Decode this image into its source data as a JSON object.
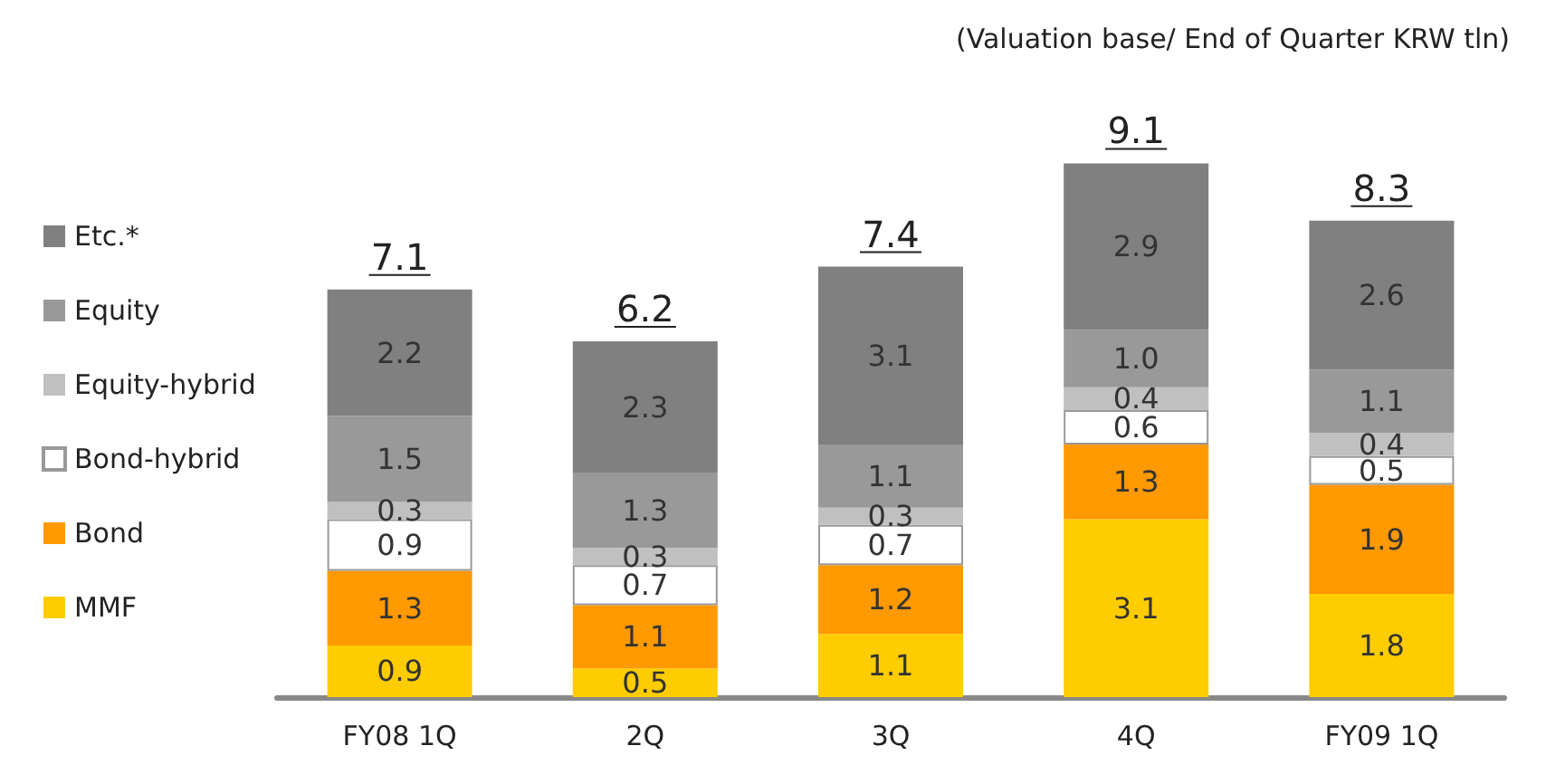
{
  "chart_data": {
    "type": "bar",
    "stacked": true,
    "data_labels": true,
    "legend": "left",
    "grid": false,
    "annotations": [
      "(Valuation base/ End of Quarter KRW tln)"
    ],
    "categories": [
      "FY08 1Q",
      "2Q",
      "3Q",
      "4Q",
      "FY09 1Q"
    ],
    "series": [
      {
        "name": "MMF",
        "color": "#ffcc00",
        "values": [
          0.9,
          0.5,
          1.1,
          3.1,
          1.8
        ]
      },
      {
        "name": "Bond",
        "color": "#ff9900",
        "values": [
          1.3,
          1.1,
          1.2,
          1.3,
          1.9
        ]
      },
      {
        "name": "Bond-hybrid",
        "color": "#ffffff",
        "values": [
          0.9,
          0.7,
          0.7,
          0.6,
          0.5
        ]
      },
      {
        "name": "Equity-hybrid",
        "color": "#c0c0c0",
        "values": [
          0.3,
          0.3,
          0.3,
          0.4,
          0.4
        ]
      },
      {
        "name": "Equity",
        "color": "#999999",
        "values": [
          1.5,
          1.3,
          1.1,
          1.0,
          1.1
        ],
        "value_labels": [
          "1.5",
          "1.3",
          "1.1",
          "1.0",
          "1.1"
        ]
      },
      {
        "name": "Etc.*",
        "color": "#808080",
        "values": [
          2.2,
          2.3,
          3.1,
          2.9,
          2.6
        ]
      }
    ],
    "totals": [
      "7.1",
      "6.2",
      "7.4",
      "9.1",
      "8.3"
    ]
  }
}
